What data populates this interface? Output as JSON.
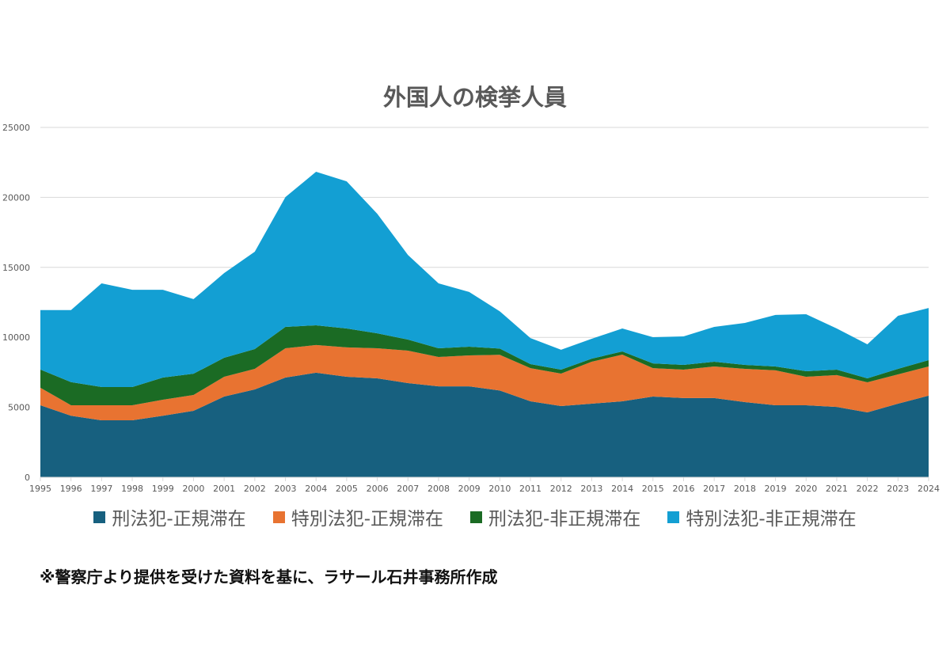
{
  "chart_data": {
    "type": "area",
    "stacked": true,
    "title": "外国人の検挙人員",
    "xlabel": "",
    "ylabel": "",
    "ylim": [
      0,
      25000
    ],
    "yticks": [
      0,
      5000,
      10000,
      15000,
      20000,
      25000
    ],
    "grid": true,
    "legend_position": "bottom",
    "categories": [
      "1995",
      "1996",
      "1997",
      "1998",
      "1999",
      "2000",
      "2001",
      "2002",
      "2003",
      "2004",
      "2005",
      "2006",
      "2007",
      "2008",
      "2009",
      "2010",
      "2011",
      "2012",
      "2013",
      "2014",
      "2015",
      "2016",
      "2017",
      "2018",
      "2019",
      "2020",
      "2021",
      "2022",
      "2023",
      "2024"
    ],
    "series": [
      {
        "name": "刑法犯-正規滞在",
        "color": "#17607f",
        "values": [
          5150,
          4400,
          4070,
          4070,
          4400,
          4750,
          5770,
          6280,
          7130,
          7470,
          7180,
          7070,
          6730,
          6500,
          6500,
          6200,
          5430,
          5090,
          5260,
          5430,
          5770,
          5660,
          5660,
          5370,
          5150,
          5150,
          5030,
          4640,
          5260,
          5830
        ]
      },
      {
        "name": "特別法犯-正規滞在",
        "color": "#e87331",
        "values": [
          1250,
          750,
          1080,
          1080,
          1140,
          1130,
          1410,
          1470,
          2090,
          1980,
          2100,
          2150,
          2320,
          2100,
          2210,
          2550,
          2370,
          2320,
          3000,
          3340,
          2030,
          2030,
          2260,
          2380,
          2490,
          2030,
          2270,
          2150,
          2090,
          2090
        ]
      },
      {
        "name": "刑法犯-非正規滞在",
        "color": "#1b6b24",
        "values": [
          1300,
          1650,
          1300,
          1300,
          1590,
          1520,
          1360,
          1410,
          1530,
          1410,
          1350,
          1070,
          790,
          620,
          620,
          450,
          290,
          280,
          220,
          220,
          340,
          340,
          340,
          280,
          280,
          400,
          390,
          280,
          400,
          450
        ]
      },
      {
        "name": "特別法犯-非正規滞在",
        "color": "#139fd3",
        "values": [
          4250,
          5150,
          7410,
          6950,
          6270,
          5330,
          6050,
          6960,
          9270,
          10970,
          10520,
          8540,
          6050,
          4640,
          3910,
          2660,
          1860,
          1420,
          1420,
          1640,
          1870,
          2040,
          2490,
          3000,
          3680,
          4070,
          2940,
          2430,
          3790,
          3730
        ]
      }
    ]
  },
  "footnote": "※警察庁より提供を受けた資料を基に、ラサール石井事務所作成"
}
